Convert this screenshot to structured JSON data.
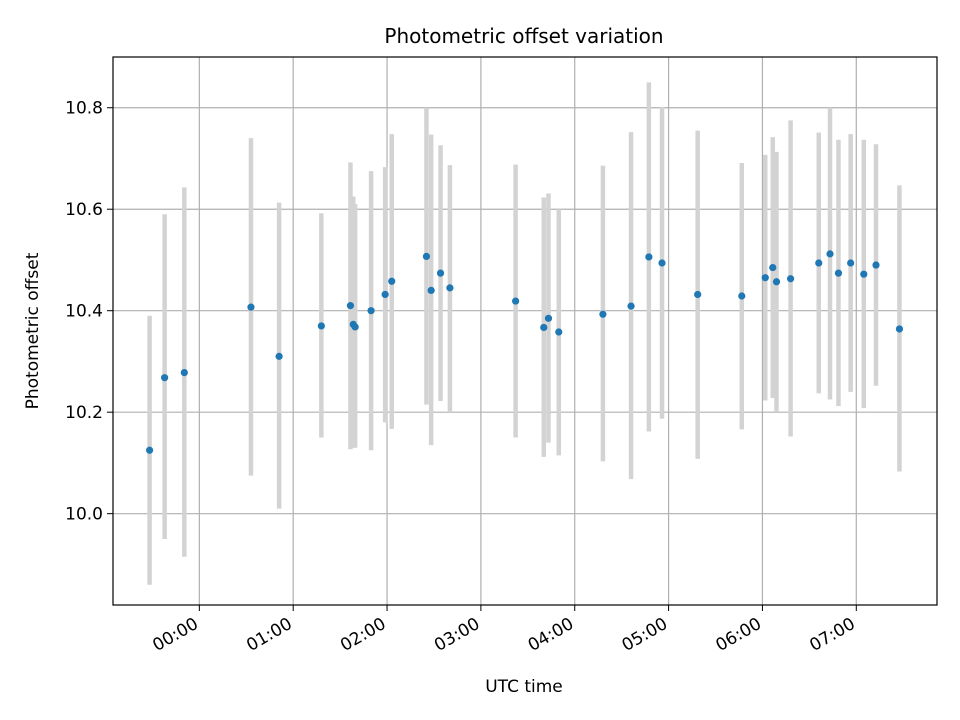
{
  "chart_data": {
    "type": "scatter",
    "title": "Photometric offset variation",
    "xlabel": "UTC time",
    "ylabel": "Photometric offset",
    "grid": true,
    "xlim_hours": [
      -0.92,
      7.86
    ],
    "ylim": [
      9.82,
      10.9
    ],
    "xticks": [
      {
        "hour": 0,
        "label": "00:00"
      },
      {
        "hour": 1,
        "label": "01:00"
      },
      {
        "hour": 2,
        "label": "02:00"
      },
      {
        "hour": 3,
        "label": "03:00"
      },
      {
        "hour": 4,
        "label": "04:00"
      },
      {
        "hour": 5,
        "label": "05:00"
      },
      {
        "hour": 6,
        "label": "06:00"
      },
      {
        "hour": 7,
        "label": "07:00"
      }
    ],
    "yticks": [
      {
        "value": 10.0,
        "label": "10.0"
      },
      {
        "value": 10.2,
        "label": "10.2"
      },
      {
        "value": 10.4,
        "label": "10.4"
      },
      {
        "value": 10.6,
        "label": "10.6"
      },
      {
        "value": 10.8,
        "label": "10.8"
      }
    ],
    "marker_color": "#1f77b4",
    "errorbar_color": "#d3d3d3",
    "points": [
      {
        "t": -0.53,
        "y": 10.125,
        "lo": 9.86,
        "hi": 10.39
      },
      {
        "t": -0.37,
        "y": 10.268,
        "lo": 9.95,
        "hi": 10.59
      },
      {
        "t": -0.16,
        "y": 10.278,
        "lo": 9.915,
        "hi": 10.643
      },
      {
        "t": 0.55,
        "y": 10.407,
        "lo": 10.075,
        "hi": 10.74
      },
      {
        "t": 0.85,
        "y": 10.31,
        "lo": 10.01,
        "hi": 10.613
      },
      {
        "t": 1.3,
        "y": 10.37,
        "lo": 10.15,
        "hi": 10.592
      },
      {
        "t": 1.61,
        "y": 10.41,
        "lo": 10.127,
        "hi": 10.692
      },
      {
        "t": 1.64,
        "y": 10.373,
        "lo": 10.13,
        "hi": 10.625
      },
      {
        "t": 1.66,
        "y": 10.368,
        "lo": 10.13,
        "hi": 10.61
      },
      {
        "t": 1.83,
        "y": 10.4,
        "lo": 10.125,
        "hi": 10.675
      },
      {
        "t": 1.98,
        "y": 10.432,
        "lo": 10.18,
        "hi": 10.683
      },
      {
        "t": 2.05,
        "y": 10.458,
        "lo": 10.167,
        "hi": 10.748
      },
      {
        "t": 2.42,
        "y": 10.507,
        "lo": 10.215,
        "hi": 10.8
      },
      {
        "t": 2.47,
        "y": 10.44,
        "lo": 10.135,
        "hi": 10.747
      },
      {
        "t": 2.57,
        "y": 10.474,
        "lo": 10.222,
        "hi": 10.726
      },
      {
        "t": 2.67,
        "y": 10.445,
        "lo": 10.2,
        "hi": 10.687
      },
      {
        "t": 3.37,
        "y": 10.419,
        "lo": 10.15,
        "hi": 10.688
      },
      {
        "t": 3.67,
        "y": 10.367,
        "lo": 10.112,
        "hi": 10.623
      },
      {
        "t": 3.72,
        "y": 10.385,
        "lo": 10.14,
        "hi": 10.631
      },
      {
        "t": 3.83,
        "y": 10.358,
        "lo": 10.115,
        "hi": 10.6
      },
      {
        "t": 4.3,
        "y": 10.393,
        "lo": 10.103,
        "hi": 10.686
      },
      {
        "t": 4.6,
        "y": 10.409,
        "lo": 10.068,
        "hi": 10.752
      },
      {
        "t": 4.79,
        "y": 10.506,
        "lo": 10.162,
        "hi": 10.85
      },
      {
        "t": 4.93,
        "y": 10.494,
        "lo": 10.187,
        "hi": 10.801
      },
      {
        "t": 5.31,
        "y": 10.432,
        "lo": 10.108,
        "hi": 10.755
      },
      {
        "t": 5.78,
        "y": 10.429,
        "lo": 10.166,
        "hi": 10.691
      },
      {
        "t": 6.03,
        "y": 10.465,
        "lo": 10.223,
        "hi": 10.707
      },
      {
        "t": 6.11,
        "y": 10.485,
        "lo": 10.228,
        "hi": 10.742
      },
      {
        "t": 6.15,
        "y": 10.457,
        "lo": 10.2,
        "hi": 10.713
      },
      {
        "t": 6.3,
        "y": 10.463,
        "lo": 10.152,
        "hi": 10.775
      },
      {
        "t": 6.6,
        "y": 10.494,
        "lo": 10.237,
        "hi": 10.751
      },
      {
        "t": 6.72,
        "y": 10.512,
        "lo": 10.225,
        "hi": 10.8
      },
      {
        "t": 6.81,
        "y": 10.474,
        "lo": 10.212,
        "hi": 10.737
      },
      {
        "t": 6.94,
        "y": 10.494,
        "lo": 10.24,
        "hi": 10.748
      },
      {
        "t": 7.08,
        "y": 10.472,
        "lo": 10.208,
        "hi": 10.737
      },
      {
        "t": 7.21,
        "y": 10.49,
        "lo": 10.252,
        "hi": 10.728
      },
      {
        "t": 7.46,
        "y": 10.364,
        "lo": 10.083,
        "hi": 10.647
      }
    ]
  }
}
